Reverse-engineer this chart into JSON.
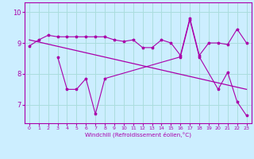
{
  "xlabel": "Windchill (Refroidissement éolien,°C)",
  "bg_color": "#cceeff",
  "grid_color": "#aadddd",
  "line_color": "#aa00aa",
  "x_all": [
    0,
    1,
    2,
    3,
    4,
    5,
    6,
    7,
    8,
    9,
    10,
    11,
    12,
    13,
    14,
    15,
    16,
    17,
    18,
    19,
    20,
    21,
    22,
    23
  ],
  "y_upper": [
    8.9,
    9.1,
    9.25,
    9.2,
    9.2,
    9.2,
    9.2,
    9.2,
    9.2,
    9.1,
    9.05,
    9.1,
    8.85,
    8.85,
    9.1,
    9.0,
    8.6,
    9.8,
    8.6,
    9.0,
    9.0,
    8.95,
    9.45,
    9.0
  ],
  "x_lower": [
    3,
    4,
    5,
    6,
    7,
    8,
    16,
    17,
    18,
    20,
    21,
    22,
    23
  ],
  "y_lower": [
    8.55,
    7.5,
    7.5,
    7.85,
    6.7,
    7.85,
    8.55,
    9.75,
    8.55,
    7.5,
    8.05,
    7.1,
    6.65
  ],
  "trend_x": [
    0,
    23
  ],
  "trend_y": [
    9.1,
    7.5
  ],
  "ylim": [
    6.4,
    10.3
  ],
  "xlim": [
    -0.5,
    23.5
  ],
  "yticks": [
    7,
    8,
    9,
    10
  ],
  "xticks": [
    0,
    1,
    2,
    3,
    4,
    5,
    6,
    7,
    8,
    9,
    10,
    11,
    12,
    13,
    14,
    15,
    16,
    17,
    18,
    19,
    20,
    21,
    22,
    23
  ]
}
